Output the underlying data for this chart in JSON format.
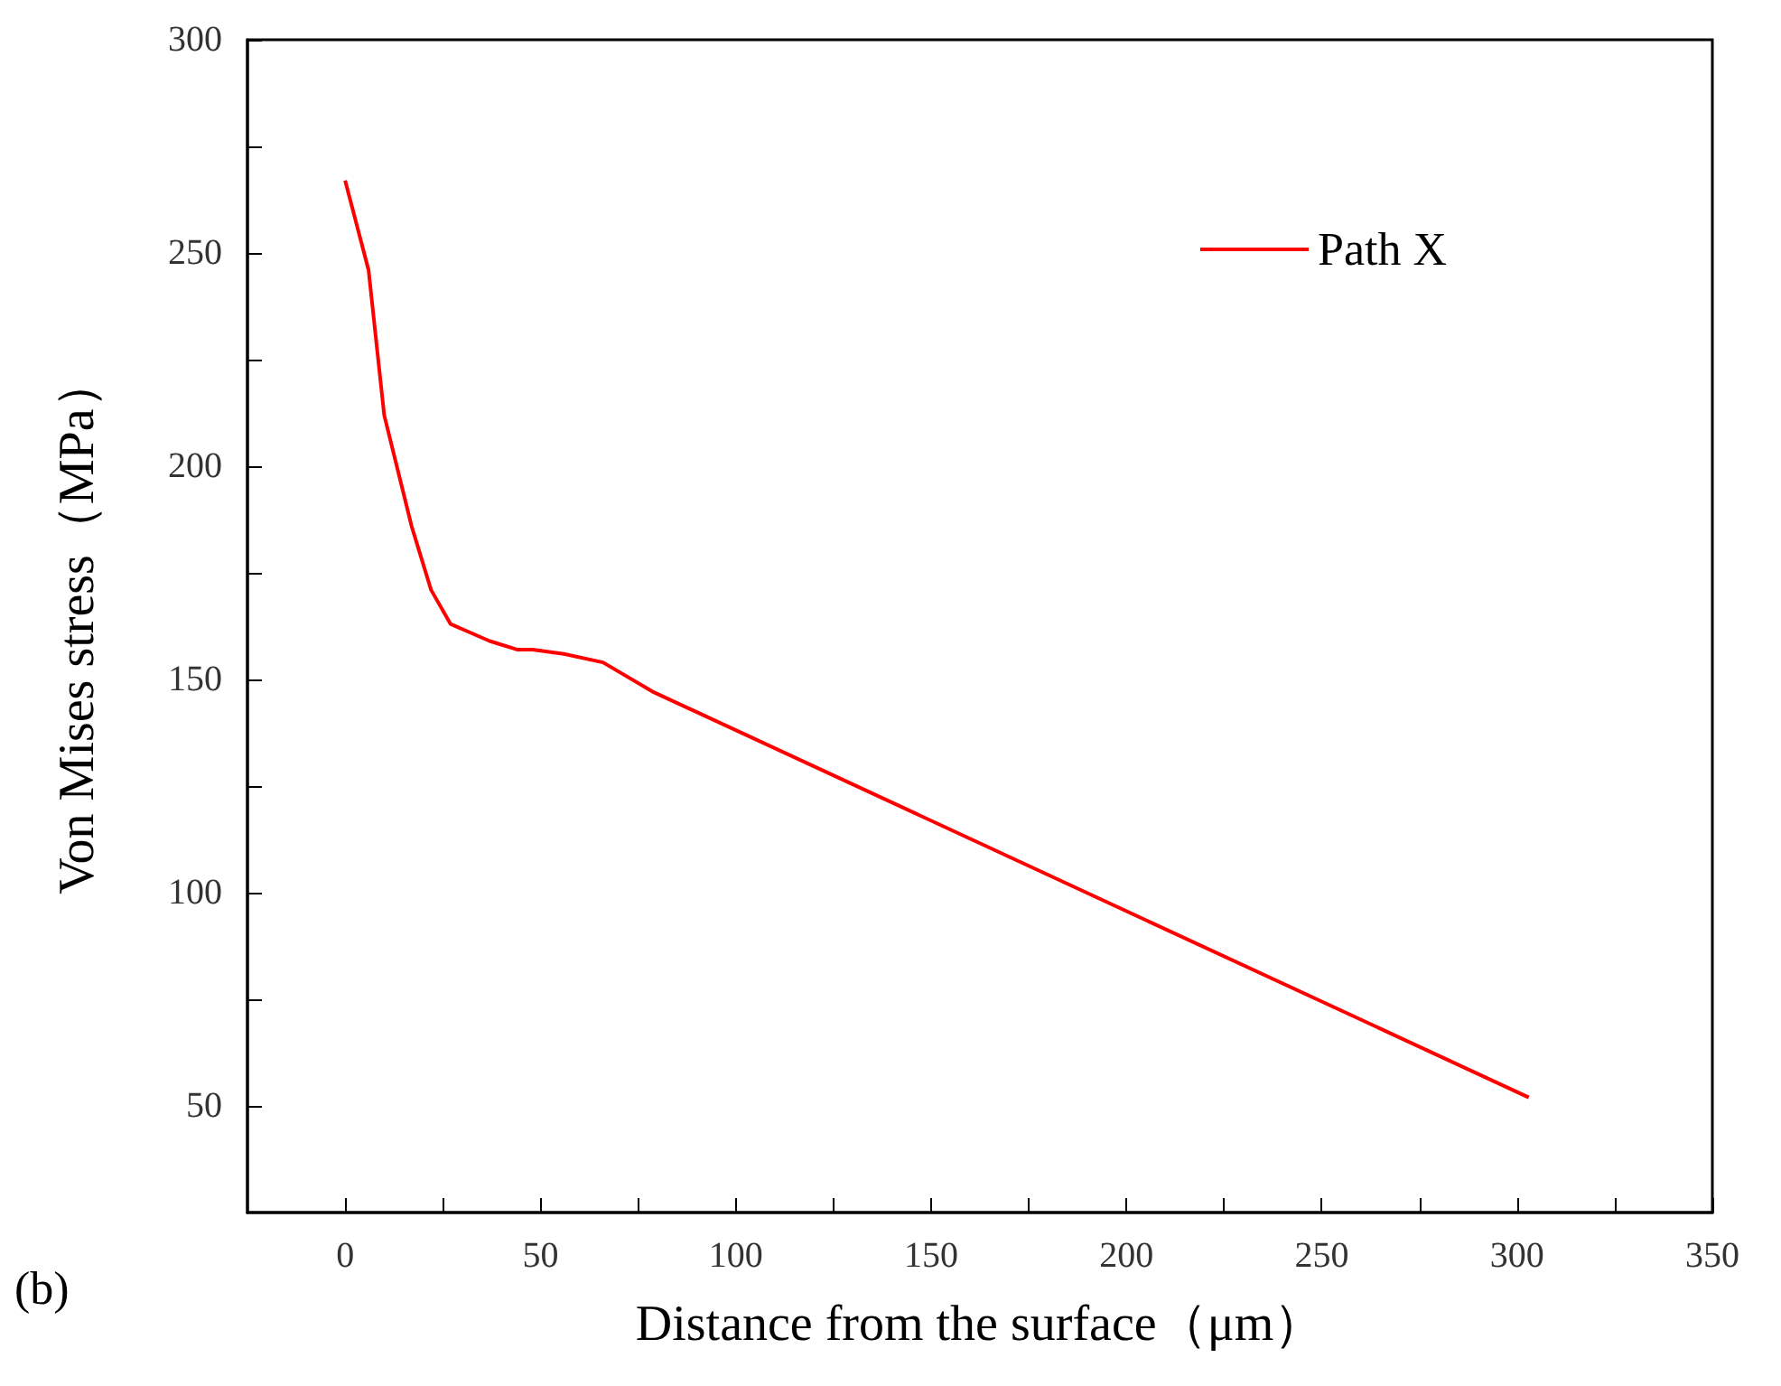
{
  "chart_data": {
    "type": "line",
    "xlabel": "Distance from the surface（μm）",
    "ylabel": "Von Mises stress（MPa）",
    "annotations": [
      "(b)"
    ],
    "series": [
      {
        "name": "Path X",
        "color": "#ff0000",
        "x": [
          0,
          6,
          10,
          17,
          22,
          27,
          37,
          44,
          48,
          56,
          66,
          79,
          303
        ],
        "values": [
          267,
          246,
          212,
          186,
          171,
          163,
          159,
          157,
          157,
          156,
          154,
          147,
          52
        ]
      }
    ],
    "xlim": [
      -25,
      350
    ],
    "xticks": [
      0,
      {
        "value": 25,
        "label": null
      },
      50,
      {
        "value": 75,
        "label": null
      },
      100,
      {
        "value": 125,
        "label": null
      },
      150,
      {
        "value": 175,
        "label": null
      },
      200,
      {
        "value": 225,
        "label": null
      },
      250,
      {
        "value": 275,
        "label": null
      },
      300,
      {
        "value": 325,
        "label": null
      },
      350
    ],
    "ylim": [
      25,
      300
    ],
    "yticks": [
      50,
      {
        "value": 75,
        "label": null
      },
      100,
      {
        "value": 125,
        "label": null
      },
      150,
      {
        "value": 175,
        "label": null
      },
      200,
      {
        "value": 225,
        "label": null
      },
      250,
      {
        "value": 275,
        "label": null
      },
      300
    ],
    "grid": false,
    "legend": "top right",
    "marker": "none",
    "line_style": "solid"
  }
}
